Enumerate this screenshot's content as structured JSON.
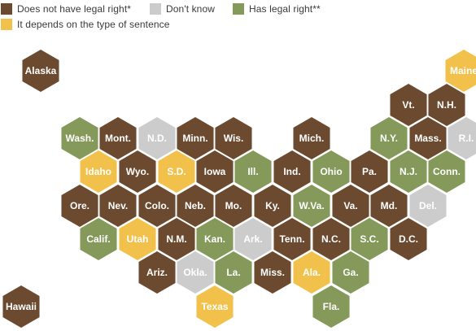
{
  "colors": {
    "no": "#6b4a2f",
    "dk": "#cccccc",
    "yes": "#84995a",
    "dep": "#f2c14b"
  },
  "legend": [
    {
      "key": "no",
      "label": "Does not have legal right*"
    },
    {
      "key": "dk",
      "label": "Don't know"
    },
    {
      "key": "yes",
      "label": "Has legal right**"
    },
    {
      "key": "dep",
      "label": "It depends on the type of sentence"
    }
  ],
  "states": [
    {
      "label": "Alaska",
      "cat": "no"
    },
    {
      "label": "Maine",
      "cat": "dep"
    },
    {
      "label": "Vt.",
      "cat": "no"
    },
    {
      "label": "N.H.",
      "cat": "no"
    },
    {
      "label": "Wash.",
      "cat": "yes"
    },
    {
      "label": "Mont.",
      "cat": "no"
    },
    {
      "label": "N.D.",
      "cat": "dk"
    },
    {
      "label": "Minn.",
      "cat": "no"
    },
    {
      "label": "Wis.",
      "cat": "no"
    },
    {
      "label": "Mich.",
      "cat": "no"
    },
    {
      "label": "N.Y.",
      "cat": "yes"
    },
    {
      "label": "Mass.",
      "cat": "no"
    },
    {
      "label": "R.I.",
      "cat": "dk"
    },
    {
      "label": "Idaho",
      "cat": "dep"
    },
    {
      "label": "Wyo.",
      "cat": "no"
    },
    {
      "label": "S.D.",
      "cat": "dep"
    },
    {
      "label": "Iowa",
      "cat": "no"
    },
    {
      "label": "Ill.",
      "cat": "yes"
    },
    {
      "label": "Ind.",
      "cat": "no"
    },
    {
      "label": "Ohio",
      "cat": "yes"
    },
    {
      "label": "Pa.",
      "cat": "no"
    },
    {
      "label": "N.J.",
      "cat": "yes"
    },
    {
      "label": "Conn.",
      "cat": "yes"
    },
    {
      "label": "Ore.",
      "cat": "no"
    },
    {
      "label": "Nev.",
      "cat": "no"
    },
    {
      "label": "Colo.",
      "cat": "no"
    },
    {
      "label": "Neb.",
      "cat": "no"
    },
    {
      "label": "Mo.",
      "cat": "no"
    },
    {
      "label": "Ky.",
      "cat": "no"
    },
    {
      "label": "W.Va.",
      "cat": "yes"
    },
    {
      "label": "Va.",
      "cat": "no"
    },
    {
      "label": "Md.",
      "cat": "no"
    },
    {
      "label": "Del.",
      "cat": "dk"
    },
    {
      "label": "Calif.",
      "cat": "yes"
    },
    {
      "label": "Utah",
      "cat": "dep"
    },
    {
      "label": "N.M.",
      "cat": "no"
    },
    {
      "label": "Kan.",
      "cat": "yes"
    },
    {
      "label": "Ark.",
      "cat": "dk"
    },
    {
      "label": "Tenn.",
      "cat": "no"
    },
    {
      "label": "N.C.",
      "cat": "no"
    },
    {
      "label": "S.C.",
      "cat": "yes"
    },
    {
      "label": "D.C.",
      "cat": "no"
    },
    {
      "label": "Ariz.",
      "cat": "no"
    },
    {
      "label": "Okla.",
      "cat": "dk"
    },
    {
      "label": "La.",
      "cat": "yes"
    },
    {
      "label": "Miss.",
      "cat": "no"
    },
    {
      "label": "Ala.",
      "cat": "dep"
    },
    {
      "label": "Ga.",
      "cat": "yes"
    },
    {
      "label": "Hawaii",
      "cat": "no"
    },
    {
      "label": "Texas",
      "cat": "dep"
    },
    {
      "label": "Fla.",
      "cat": "yes"
    }
  ]
}
